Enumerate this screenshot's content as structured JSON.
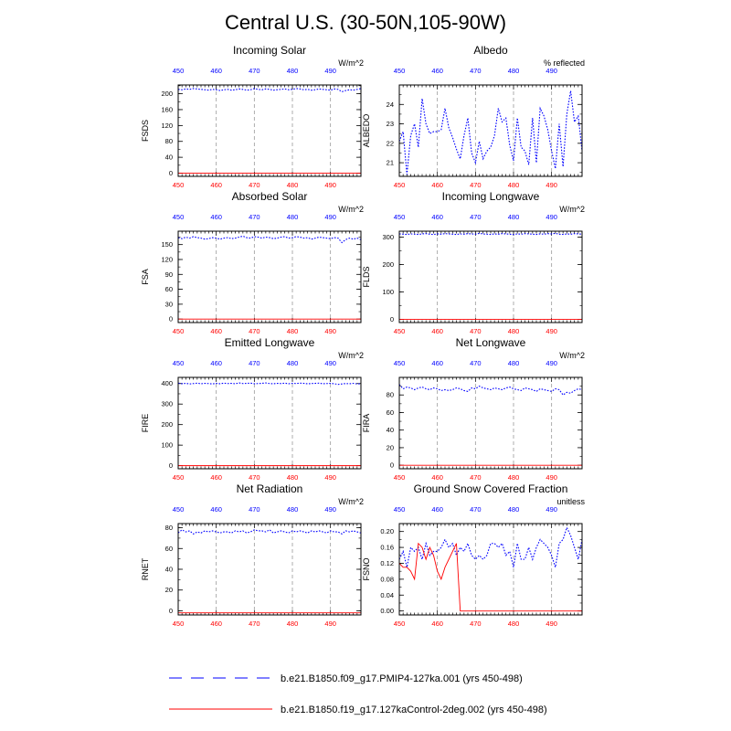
{
  "title": "Central U.S. (30-50N,105-90W)",
  "colors": {
    "series_a": "#0000ff",
    "series_b": "#ff0000",
    "grid": "#999999",
    "frame": "#000000"
  },
  "legend": {
    "entries": [
      {
        "label": "b.e21.B1850.f09_g17.PMIP4-127ka.001 (yrs 450-498)",
        "color": "#0000ff",
        "style": "dashed"
      },
      {
        "label": "b.e21.B1850.f19_g17.127kaControl-2deg.002 (yrs 450-498)",
        "color": "#ff0000",
        "style": "solid"
      }
    ]
  },
  "chart_data": [
    {
      "type": "line",
      "title": "Incoming Solar",
      "units": "W/m^2",
      "ylabel": "FSDS",
      "x_start": 450,
      "xlim": [
        450,
        498
      ],
      "xticks": [
        450,
        460,
        470,
        480,
        490
      ],
      "ylim": [
        -8,
        222
      ],
      "yticks": [
        0,
        40,
        80,
        120,
        160,
        200
      ],
      "grid_x": [
        460,
        470,
        480,
        490
      ],
      "series": [
        {
          "values": [
            211,
            210,
            212,
            211,
            213,
            212,
            211,
            210,
            209,
            211,
            210,
            208,
            210,
            211,
            209,
            210,
            212,
            211,
            209,
            210,
            213,
            211,
            210,
            212,
            211,
            209,
            210,
            211,
            212,
            210,
            211,
            213,
            212,
            210,
            211,
            209,
            210,
            212,
            211,
            210,
            209,
            212,
            211,
            205,
            208,
            210,
            209,
            211,
            213
          ]
        },
        {
          "values": [
            0,
            0,
            0,
            0,
            0,
            0,
            0,
            0,
            0,
            0,
            0,
            0,
            0,
            0,
            0,
            0,
            0,
            0,
            0,
            0,
            0,
            0,
            0,
            0,
            0,
            0,
            0,
            0,
            0,
            0,
            0,
            0,
            0,
            0,
            0,
            0,
            0,
            0,
            0,
            0,
            0,
            0,
            0,
            0,
            0,
            0,
            0,
            0,
            0
          ]
        }
      ]
    },
    {
      "type": "line",
      "title": "Albedo",
      "units": "% reflected",
      "ylabel": "ALBEDO",
      "x_start": 450,
      "xlim": [
        450,
        498
      ],
      "xticks": [
        450,
        460,
        470,
        480,
        490
      ],
      "ylim": [
        20.3,
        25.0
      ],
      "yticks": [
        21.0,
        22.0,
        23.0,
        24.0
      ],
      "grid_x": [
        460,
        470,
        480,
        490
      ],
      "series": [
        {
          "values": [
            22.1,
            22.6,
            20.4,
            22.4,
            23.0,
            21.8,
            24.3,
            23.0,
            22.5,
            22.6,
            22.6,
            22.7,
            23.8,
            22.8,
            22.3,
            21.7,
            21.2,
            22.4,
            23.3,
            21.5,
            21.0,
            22.1,
            21.2,
            21.6,
            21.8,
            22.4,
            23.8,
            23.1,
            23.3,
            21.9,
            21.1,
            23.3,
            21.8,
            21.6,
            20.9,
            23.3,
            21.0,
            23.8,
            23.4,
            22.7,
            21.6,
            20.7,
            23.0,
            20.8,
            23.5,
            24.7,
            23.1,
            23.4,
            21.6
          ]
        },
        {
          "values": []
        }
      ]
    },
    {
      "type": "line",
      "title": "Absorbed Solar",
      "units": "W/m^2",
      "ylabel": "FSA",
      "x_start": 450,
      "xlim": [
        450,
        498
      ],
      "xticks": [
        450,
        460,
        470,
        480,
        490
      ],
      "ylim": [
        -7,
        177
      ],
      "yticks": [
        0,
        30,
        60,
        90,
        120,
        150
      ],
      "grid_x": [
        460,
        470,
        480,
        490
      ],
      "series": [
        {
          "values": [
            164,
            162,
            165,
            163,
            166,
            164,
            163,
            161,
            162,
            164,
            163,
            161,
            163,
            164,
            162,
            163,
            165,
            167,
            164,
            163,
            166,
            165,
            163,
            165,
            164,
            162,
            163,
            165,
            166,
            163,
            164,
            166,
            165,
            163,
            164,
            161,
            163,
            165,
            164,
            163,
            162,
            164,
            163,
            154,
            160,
            163,
            161,
            163,
            160
          ]
        },
        {
          "values": [
            0,
            0,
            0,
            0,
            0,
            0,
            0,
            0,
            0,
            0,
            0,
            0,
            0,
            0,
            0,
            0,
            0,
            0,
            0,
            0,
            0,
            0,
            0,
            0,
            0,
            0,
            0,
            0,
            0,
            0,
            0,
            0,
            0,
            0,
            0,
            0,
            0,
            0,
            0,
            0,
            0,
            0,
            0,
            0,
            0,
            0,
            0,
            0,
            0
          ]
        }
      ]
    },
    {
      "type": "line",
      "title": "Incoming Longwave",
      "units": "W/m^2",
      "ylabel": "FLDS",
      "x_start": 450,
      "xlim": [
        450,
        498
      ],
      "xticks": [
        450,
        460,
        470,
        480,
        490
      ],
      "ylim": [
        -12,
        322
      ],
      "yticks": [
        0,
        100,
        200,
        300
      ],
      "grid_x": [
        460,
        470,
        480,
        490
      ],
      "series": [
        {
          "values": [
            312,
            311,
            310,
            312,
            311,
            310,
            312,
            313,
            311,
            310,
            312,
            311,
            313,
            312,
            311,
            310,
            312,
            311,
            313,
            312,
            311,
            314,
            312,
            311,
            310,
            312,
            311,
            313,
            312,
            311,
            310,
            312,
            311,
            313,
            312,
            311,
            310,
            312,
            311,
            313,
            312,
            314,
            311,
            310,
            312,
            311,
            313,
            312,
            311
          ]
        },
        {
          "values": [
            0,
            0,
            0,
            0,
            0,
            0,
            0,
            0,
            0,
            0,
            0,
            0,
            0,
            0,
            0,
            0,
            0,
            0,
            0,
            0,
            0,
            0,
            0,
            0,
            0,
            0,
            0,
            0,
            0,
            0,
            0,
            0,
            0,
            0,
            0,
            0,
            0,
            0,
            0,
            0,
            0,
            0,
            0,
            0,
            0,
            0,
            0,
            0,
            0
          ]
        }
      ]
    },
    {
      "type": "line",
      "title": "Emitted Longwave",
      "units": "W/m^2",
      "ylabel": "FIRE",
      "x_start": 450,
      "xlim": [
        450,
        498
      ],
      "xticks": [
        450,
        460,
        470,
        480,
        490
      ],
      "ylim": [
        -15,
        430
      ],
      "yticks": [
        0,
        100,
        200,
        300,
        400
      ],
      "grid_x": [
        460,
        470,
        480,
        490
      ],
      "series": [
        {
          "values": [
            402,
            399,
            401,
            398,
            400,
            402,
            399,
            401,
            400,
            398,
            401,
            399,
            402,
            400,
            401,
            399,
            403,
            400,
            401,
            402,
            399,
            400,
            401,
            403,
            400,
            399,
            401,
            400,
            402,
            399,
            401,
            400,
            402,
            401,
            399,
            400,
            401,
            402,
            399,
            400,
            401,
            399,
            396,
            398,
            400,
            399,
            401,
            398,
            399
          ]
        },
        {
          "values": [
            0,
            0,
            0,
            0,
            0,
            0,
            0,
            0,
            0,
            0,
            0,
            0,
            0,
            0,
            0,
            0,
            0,
            0,
            0,
            0,
            0,
            0,
            0,
            0,
            0,
            0,
            0,
            0,
            0,
            0,
            0,
            0,
            0,
            0,
            0,
            0,
            0,
            0,
            0,
            0,
            0,
            0,
            0,
            0,
            0,
            0,
            0,
            0,
            0
          ]
        }
      ]
    },
    {
      "type": "line",
      "title": "Net Longwave",
      "units": "W/m^2",
      "ylabel": "FIRA",
      "x_start": 450,
      "xlim": [
        450,
        498
      ],
      "xticks": [
        450,
        460,
        470,
        480,
        490
      ],
      "ylim": [
        -4,
        100
      ],
      "yticks": [
        0,
        20,
        40,
        60,
        80
      ],
      "grid_x": [
        460,
        470,
        480,
        490
      ],
      "series": [
        {
          "values": [
            92,
            87,
            89,
            88,
            86,
            88,
            89,
            87,
            86,
            88,
            87,
            85,
            86,
            85,
            86,
            88,
            87,
            85,
            84,
            88,
            87,
            90,
            88,
            87,
            86,
            88,
            87,
            86,
            88,
            89,
            87,
            86,
            85,
            88,
            87,
            86,
            84,
            87,
            86,
            85,
            84,
            87,
            86,
            80,
            83,
            82,
            85,
            87,
            86
          ]
        },
        {
          "values": [
            0,
            0,
            0,
            0,
            0,
            0,
            0,
            0,
            0,
            0,
            0,
            0,
            0,
            0,
            0,
            0,
            0,
            0,
            0,
            0,
            0,
            0,
            0,
            0,
            0,
            0,
            0,
            0,
            0,
            0,
            0,
            0,
            0,
            0,
            0,
            0,
            0,
            0,
            0,
            0,
            0,
            0,
            0,
            0,
            0,
            0,
            0,
            0,
            0
          ]
        }
      ]
    },
    {
      "type": "line",
      "title": "Net Radiation",
      "units": "W/m^2",
      "ylabel": "RNET",
      "x_start": 450,
      "xlim": [
        450,
        498
      ],
      "xticks": [
        450,
        460,
        470,
        480,
        490
      ],
      "ylim": [
        -4,
        84
      ],
      "yticks": [
        0,
        20,
        40,
        60,
        80
      ],
      "grid_x": [
        460,
        470,
        480,
        490
      ],
      "series": [
        {
          "values": [
            75,
            78,
            76,
            77,
            74,
            76,
            75,
            77,
            76,
            77,
            76,
            75,
            76,
            76,
            75,
            77,
            76,
            77,
            75,
            76,
            78,
            77,
            77,
            76,
            78,
            75,
            76,
            77,
            76,
            75,
            77,
            76,
            77,
            76,
            75,
            77,
            76,
            77,
            76,
            75,
            77,
            76,
            76,
            74,
            77,
            76,
            77,
            76,
            75
          ]
        },
        {
          "values": [
            -2,
            -2,
            -2,
            -2,
            -2,
            -2,
            -2,
            -2,
            -2,
            -2,
            -2,
            -2,
            -2,
            -2,
            -2,
            -2,
            -2,
            -2,
            -2,
            -2,
            -2,
            -2,
            -2,
            -2,
            -2,
            -2,
            -2,
            -2,
            -2,
            -2,
            -2,
            -2,
            -2,
            -2,
            -2,
            -2,
            -2,
            -2,
            -2,
            -2,
            -2,
            -2,
            -2,
            -2,
            -2,
            -2,
            -2,
            -2,
            -2
          ]
        }
      ]
    },
    {
      "type": "line",
      "title": "Ground Snow Covered Fraction",
      "units": "unitless",
      "ylabel": "FSNO",
      "x_start": 450,
      "xlim": [
        450,
        498
      ],
      "xticks": [
        450,
        460,
        470,
        480,
        490
      ],
      "ylim": [
        -0.01,
        0.22
      ],
      "yticks": [
        0.0,
        0.04,
        0.08,
        0.12,
        0.16,
        0.2
      ],
      "grid_x": [
        460,
        470,
        480,
        490
      ],
      "series": [
        {
          "values": [
            0.13,
            0.15,
            0.11,
            0.16,
            0.15,
            0.16,
            0.13,
            0.17,
            0.14,
            0.15,
            0.15,
            0.16,
            0.18,
            0.16,
            0.17,
            0.14,
            0.16,
            0.15,
            0.17,
            0.14,
            0.13,
            0.14,
            0.13,
            0.14,
            0.17,
            0.17,
            0.16,
            0.17,
            0.14,
            0.15,
            0.11,
            0.17,
            0.13,
            0.13,
            0.16,
            0.13,
            0.16,
            0.18,
            0.17,
            0.16,
            0.14,
            0.11,
            0.17,
            0.18,
            0.21,
            0.19,
            0.16,
            0.13,
            0.18
          ]
        },
        {
          "values": [
            0.12,
            0.11,
            0.11,
            0.1,
            0.08,
            0.17,
            0.16,
            0.13,
            0.16,
            0.14,
            0.1,
            0.08,
            0.11,
            0.13,
            0.15,
            0.17,
            0.0,
            0.0,
            0.0,
            0.0,
            0.0,
            0.0,
            0.0,
            0.0,
            0.0,
            0.0,
            0.0,
            0.0,
            0.0,
            0.0,
            0.0,
            0.0,
            0.0,
            0.0,
            0.0,
            0.0,
            0.0,
            0.0,
            0.0,
            0.0,
            0.0,
            0.0,
            0.0,
            0.0,
            0.0,
            0.0,
            0.0,
            0.0,
            0.0
          ]
        }
      ]
    }
  ]
}
